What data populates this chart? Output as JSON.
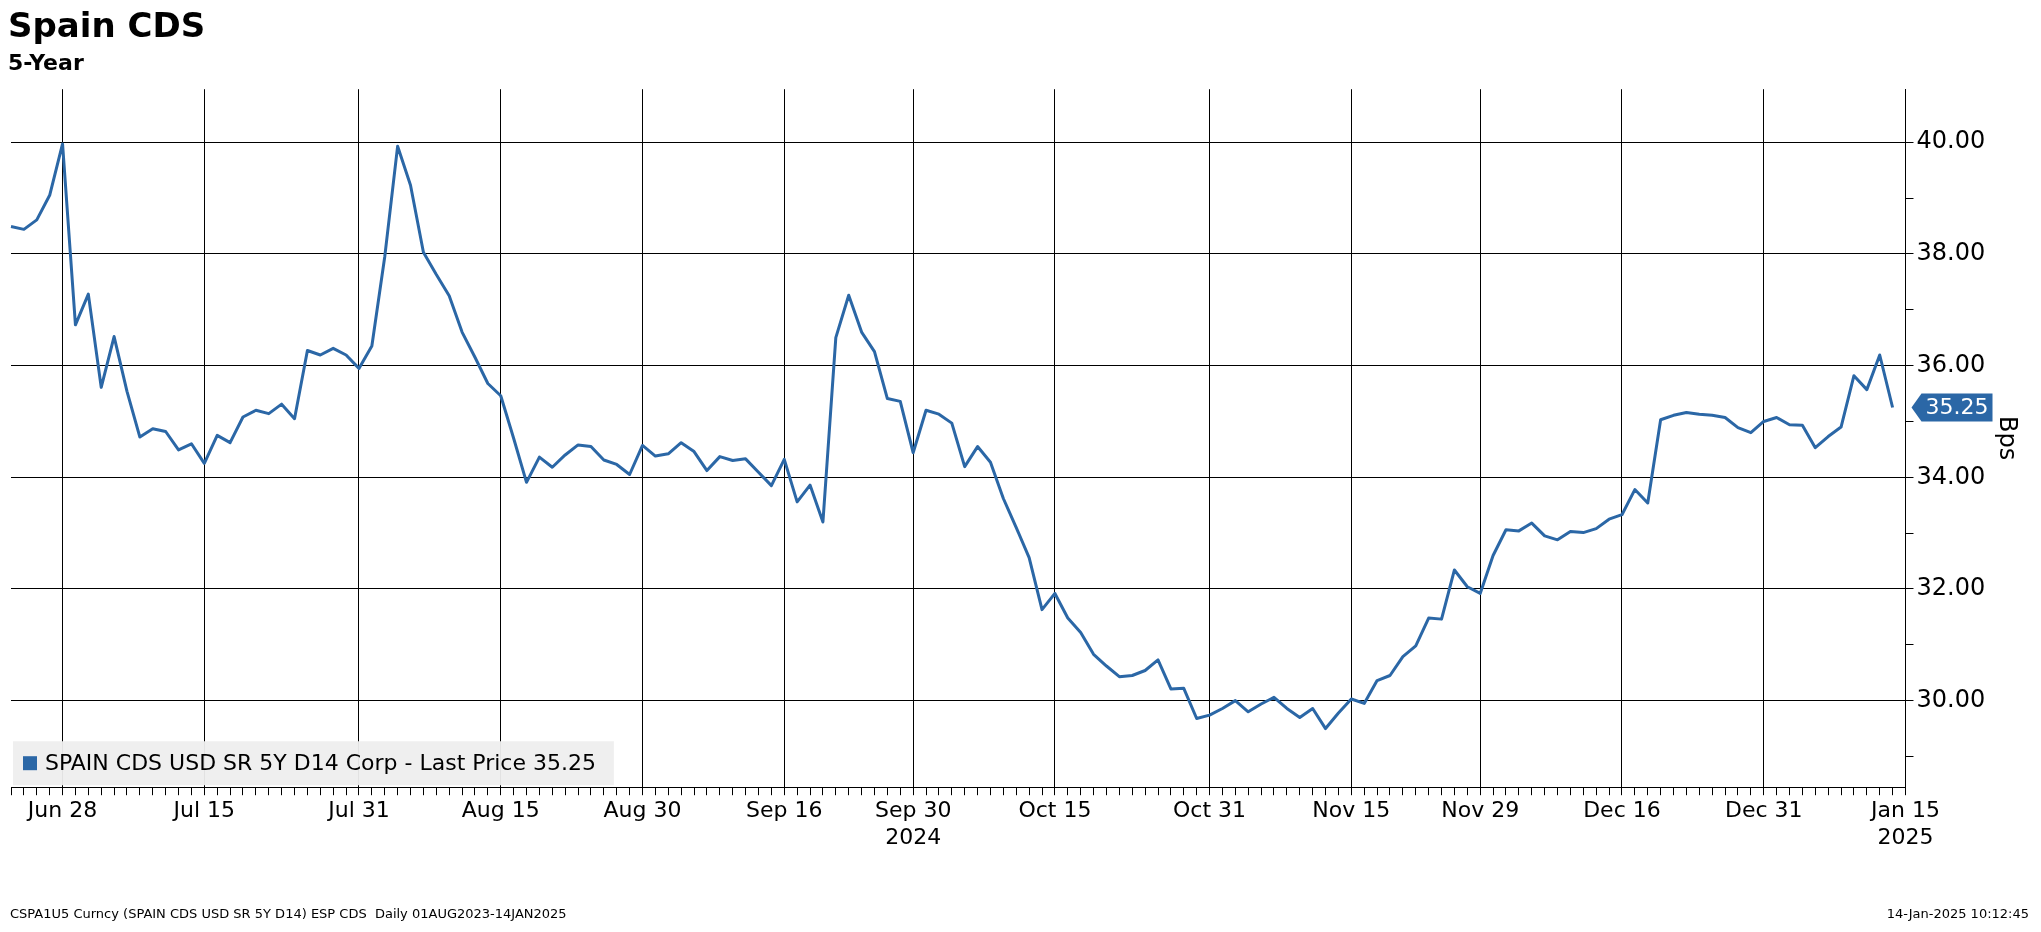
{
  "chart_data": {
    "type": "line",
    "title": "Spain CDS",
    "subtitle": "5-Year",
    "ylabel": "Bps",
    "categories": [
      null,
      null,
      null,
      null,
      "Jun 28",
      null,
      null,
      null,
      null,
      null,
      null,
      null,
      null,
      null,
      null,
      "Jul 15",
      null,
      null,
      null,
      null,
      null,
      null,
      null,
      null,
      null,
      null,
      null,
      "Jul 31",
      null,
      null,
      null,
      null,
      null,
      null,
      null,
      null,
      null,
      null,
      "Aug 15",
      null,
      null,
      null,
      null,
      null,
      null,
      null,
      null,
      null,
      null,
      "Aug 30",
      null,
      null,
      null,
      null,
      null,
      null,
      null,
      null,
      null,
      null,
      "Sep 16",
      null,
      null,
      null,
      null,
      null,
      null,
      null,
      null,
      null,
      "Sep 30\n2024",
      null,
      null,
      null,
      null,
      null,
      null,
      null,
      null,
      null,
      null,
      "Oct 15",
      null,
      null,
      null,
      null,
      null,
      null,
      null,
      null,
      null,
      null,
      null,
      "Oct 31",
      null,
      null,
      null,
      null,
      null,
      null,
      null,
      null,
      null,
      null,
      "Nov 15",
      null,
      null,
      null,
      null,
      null,
      null,
      null,
      null,
      null,
      "Nov 29",
      null,
      null,
      null,
      null,
      null,
      null,
      null,
      null,
      null,
      null,
      "Dec 16",
      null,
      null,
      null,
      null,
      null,
      null,
      null,
      null,
      null,
      null,
      "Dec 31",
      null,
      null,
      null,
      null,
      null,
      null,
      null,
      null,
      null,
      null,
      "Jan 15\n2025"
    ],
    "series": [
      {
        "name": "SPAIN CDS USD SR 5Y D14 Corp - Last Price 35.25",
        "color": "#2b67a6",
        "values": [
          38.49,
          38.44,
          38.61,
          39.05,
          39.97,
          36.73,
          37.28,
          35.61,
          36.52,
          35.54,
          34.72,
          34.87,
          34.82,
          34.49,
          34.6,
          34.25,
          34.75,
          34.62,
          35.08,
          35.2,
          35.14,
          35.31,
          35.05,
          36.27,
          36.19,
          36.31,
          36.19,
          35.95,
          36.35,
          37.95,
          39.93,
          39.23,
          38.03,
          37.63,
          37.25,
          36.6,
          36.15,
          35.68,
          35.46,
          34.7,
          33.91,
          34.36,
          34.18,
          34.4,
          34.58,
          34.55,
          34.31,
          34.23,
          34.05,
          34.57,
          34.38,
          34.42,
          34.62,
          34.46,
          34.12,
          34.37,
          34.3,
          34.33,
          34.09,
          33.85,
          34.32,
          33.56,
          33.86,
          33.2,
          36.5,
          37.26,
          36.6,
          36.25,
          35.41,
          35.36,
          34.44,
          35.2,
          35.13,
          34.97,
          34.19,
          34.55,
          34.27,
          33.62,
          33.1,
          32.56,
          31.63,
          31.92,
          31.48,
          31.22,
          30.83,
          30.62,
          30.43,
          30.45,
          30.54,
          30.73,
          30.21,
          30.22,
          29.68,
          29.74,
          29.86,
          30.0,
          29.8,
          29.94,
          30.06,
          29.86,
          29.7,
          29.86,
          29.5,
          29.78,
          30.03,
          29.95,
          30.36,
          30.45,
          30.79,
          30.98,
          31.48,
          31.46,
          32.34,
          32.04,
          31.92,
          32.6,
          33.06,
          33.04,
          33.18,
          32.95,
          32.88,
          33.03,
          33.01,
          33.08,
          33.25,
          33.33,
          33.78,
          33.54,
          35.03,
          35.11,
          35.16,
          35.13,
          35.11,
          35.07,
          34.89,
          34.8,
          35.0,
          35.07,
          34.94,
          34.93,
          34.53,
          34.73,
          34.9,
          35.82,
          35.57,
          36.19,
          35.25,
          null
        ],
        "value_labels": [
          null,
          null,
          null,
          null,
          null,
          null,
          null,
          null,
          null,
          null,
          null,
          null,
          null,
          null,
          null,
          null,
          null,
          null,
          null,
          null,
          null,
          null,
          null,
          null,
          null,
          null,
          null,
          null,
          null,
          null,
          null,
          null,
          null,
          null,
          null,
          null,
          null,
          null,
          null,
          null,
          null,
          null,
          null,
          null,
          null,
          null,
          null,
          null,
          null,
          null,
          null,
          null,
          null,
          null,
          null,
          null,
          null,
          null,
          null,
          null,
          null,
          null,
          null,
          null,
          null,
          null,
          null,
          null,
          null,
          null,
          null,
          null,
          null,
          null,
          null,
          null,
          null,
          null,
          null,
          null,
          null,
          null,
          null,
          null,
          null,
          null,
          null,
          null,
          null,
          null,
          null,
          null,
          null,
          null,
          null,
          null,
          null,
          null,
          null,
          null,
          null,
          null,
          null,
          null,
          null,
          null,
          null,
          null,
          null,
          null,
          null,
          null,
          null,
          null,
          null,
          null,
          null,
          null,
          null,
          null,
          null,
          null,
          null,
          null,
          null,
          null,
          null,
          null,
          null,
          null,
          null,
          null,
          null,
          null,
          null,
          null,
          null,
          null,
          null,
          null,
          null,
          null,
          null,
          null,
          null,
          null,
          "35.25",
          null
        ]
      }
    ],
    "ylim": [
      28.45,
      40.95
    ],
    "yticks": [
      {
        "value": 29,
        "label": null
      },
      {
        "value": 30,
        "label": "30.00"
      },
      {
        "value": 31,
        "label": null
      },
      {
        "value": 32,
        "label": "32.00"
      },
      {
        "value": 33,
        "label": null
      },
      {
        "value": 34,
        "label": "34.00"
      },
      {
        "value": 35,
        "label": null
      },
      {
        "value": 36,
        "label": "36.00"
      },
      {
        "value": 37,
        "label": null
      },
      {
        "value": 38,
        "label": "38.00"
      },
      {
        "value": 39,
        "label": null
      },
      {
        "value": 40,
        "label": "40.00"
      }
    ],
    "grid": true,
    "legend": "bottom left",
    "line_style": "solid",
    "annotations": [
      "CSPA1U5 Curncy (SPAIN CDS USD SR 5Y D14) ESP CDS  Daily 01AUG2023-14JAN2025",
      "14-Jan-2025 10:12:45"
    ]
  }
}
